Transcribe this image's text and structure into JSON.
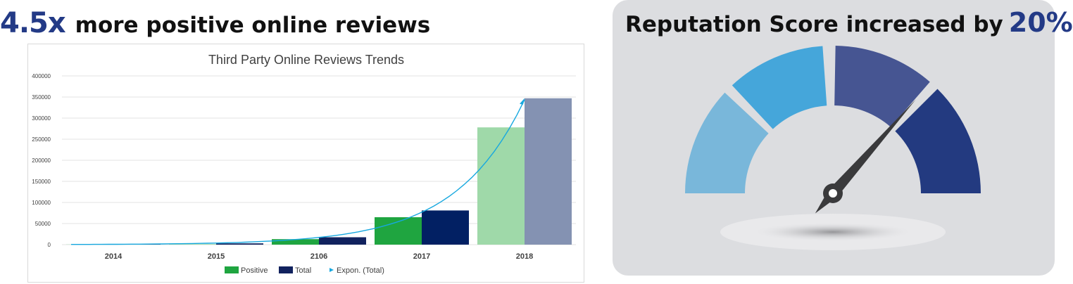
{
  "headline": {
    "multiplier": "4.5x",
    "text": "more positive online reviews"
  },
  "chart_data": {
    "type": "bar",
    "title": "Third Party Online Reviews Trends",
    "categories": [
      "2014",
      "2015",
      "2106",
      "2017",
      "2018"
    ],
    "series": [
      {
        "name": "Positive",
        "values": [
          500,
          1500,
          13000,
          65000,
          278000
        ]
      },
      {
        "name": "Total",
        "values": [
          1000,
          3000,
          17500,
          81000,
          347000
        ]
      }
    ],
    "trendline": {
      "name": "Expon. (Total)",
      "of_series": "Total"
    },
    "yticks": [
      "400000",
      "350000",
      "300000",
      "250000",
      "200000",
      "150000",
      "100000",
      "50000",
      "0"
    ],
    "ylim": [
      0,
      400000
    ],
    "legend_position": "bottom",
    "grid": true,
    "colors": {
      "positive": [
        "#9fd9a9",
        "#9fd9a9",
        "#1fa540",
        "#1fa540",
        "#9fd9a9"
      ],
      "total": [
        "#11225e",
        "#11225e",
        "#11225e",
        "#022063",
        "#8492b2"
      ],
      "positive_legend": "#1fa540",
      "total_legend": "#11225e",
      "trend": "#17a8df"
    }
  },
  "gauge": {
    "title": "Reputation Score increased by",
    "percent": "20%",
    "segment_colors": [
      "#79b7da",
      "#45a6da",
      "#465592",
      "#233a80"
    ],
    "needle_color": "#3a3a3c",
    "needle_value_fraction": 0.73
  }
}
